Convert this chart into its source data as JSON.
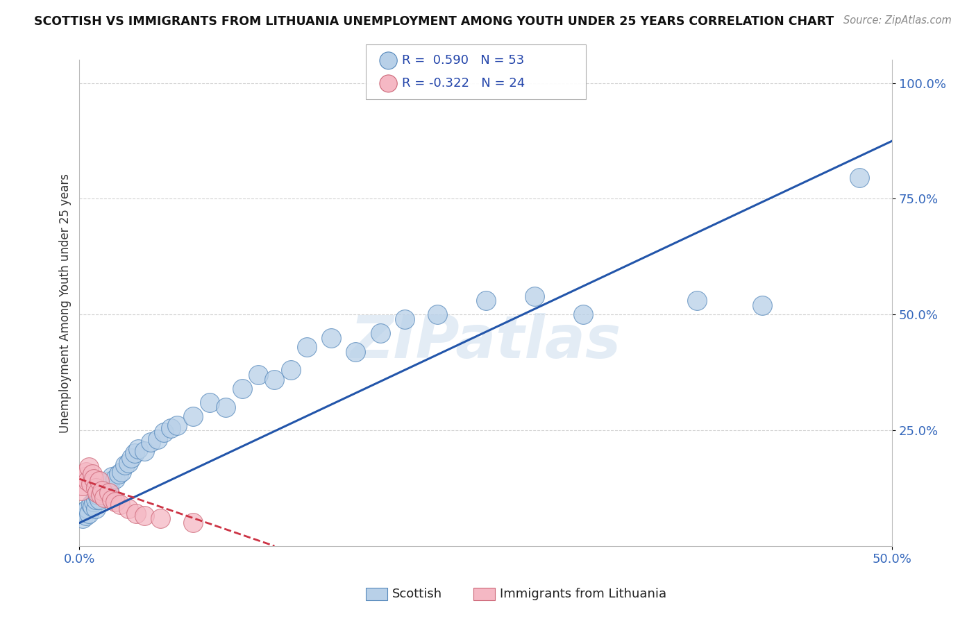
{
  "title": "SCOTTISH VS IMMIGRANTS FROM LITHUANIA UNEMPLOYMENT AMONG YOUTH UNDER 25 YEARS CORRELATION CHART",
  "source": "Source: ZipAtlas.com",
  "ylabel": "Unemployment Among Youth under 25 years",
  "xlim": [
    0.0,
    0.5
  ],
  "ylim": [
    0.0,
    1.05
  ],
  "ytick_values": [
    0.25,
    0.5,
    0.75,
    1.0
  ],
  "ytick_labels": [
    "25.0%",
    "50.0%",
    "75.0%",
    "100.0%"
  ],
  "xtick_values": [
    0.0,
    0.5
  ],
  "xtick_labels": [
    "0.0%",
    "50.0%"
  ],
  "scottish_R": 0.59,
  "scottish_N": 53,
  "lithuania_R": -0.322,
  "lithuania_N": 24,
  "scottish_color": "#b8d0e8",
  "scottish_edge": "#5588bb",
  "lithuania_color": "#f5b8c4",
  "lithuania_edge": "#cc6677",
  "trendline_scottish_color": "#2255aa",
  "trendline_lithuania_color": "#cc3344",
  "watermark": "ZIPatlas",
  "trendline_s_x0": 0.0,
  "trendline_s_y0": 0.05,
  "trendline_s_x1": 0.5,
  "trendline_s_y1": 0.875,
  "trendline_l_x0": 0.0,
  "trendline_l_y0": 0.145,
  "trendline_l_x1": 0.12,
  "trendline_l_y1": 0.0,
  "scottish_x": [
    0.002,
    0.003,
    0.004,
    0.005,
    0.006,
    0.007,
    0.008,
    0.009,
    0.01,
    0.01,
    0.011,
    0.012,
    0.013,
    0.014,
    0.015,
    0.016,
    0.017,
    0.018,
    0.019,
    0.02,
    0.022,
    0.024,
    0.026,
    0.028,
    0.03,
    0.032,
    0.034,
    0.036,
    0.04,
    0.044,
    0.048,
    0.052,
    0.056,
    0.06,
    0.07,
    0.08,
    0.09,
    0.1,
    0.11,
    0.12,
    0.13,
    0.14,
    0.155,
    0.17,
    0.185,
    0.2,
    0.22,
    0.25,
    0.28,
    0.31,
    0.38,
    0.42,
    0.48
  ],
  "scottish_y": [
    0.06,
    0.075,
    0.065,
    0.08,
    0.07,
    0.09,
    0.085,
    0.095,
    0.08,
    0.1,
    0.11,
    0.1,
    0.115,
    0.12,
    0.11,
    0.13,
    0.125,
    0.12,
    0.14,
    0.15,
    0.145,
    0.155,
    0.16,
    0.175,
    0.18,
    0.19,
    0.2,
    0.21,
    0.205,
    0.225,
    0.23,
    0.245,
    0.255,
    0.26,
    0.28,
    0.31,
    0.3,
    0.34,
    0.37,
    0.36,
    0.38,
    0.43,
    0.45,
    0.42,
    0.46,
    0.49,
    0.5,
    0.53,
    0.54,
    0.5,
    0.53,
    0.52,
    0.795
  ],
  "lithuania_x": [
    0.001,
    0.002,
    0.003,
    0.004,
    0.005,
    0.006,
    0.007,
    0.008,
    0.009,
    0.01,
    0.011,
    0.012,
    0.013,
    0.014,
    0.015,
    0.018,
    0.02,
    0.022,
    0.025,
    0.03,
    0.035,
    0.04,
    0.05,
    0.07
  ],
  "lithuania_y": [
    0.12,
    0.13,
    0.15,
    0.16,
    0.14,
    0.17,
    0.135,
    0.155,
    0.145,
    0.125,
    0.115,
    0.14,
    0.11,
    0.12,
    0.105,
    0.115,
    0.1,
    0.095,
    0.09,
    0.08,
    0.07,
    0.065,
    0.06,
    0.05
  ]
}
